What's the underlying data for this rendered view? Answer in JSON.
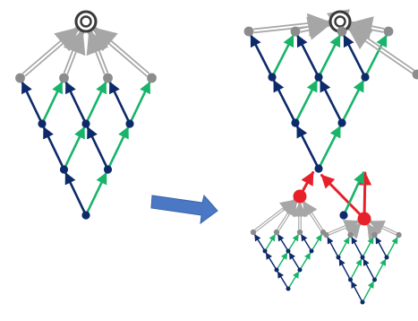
{
  "colors": {
    "background": "#ffffff",
    "navy": "#0d2a6b",
    "green": "#19b46a",
    "gray": "#8c8c8c",
    "gray_arrow": "#a6a6a6",
    "red": "#e8202a",
    "transform_arrow": "#4a78c4",
    "root_ring": "#3a3a3a"
  },
  "icons": {
    "root": "target-ring",
    "transform": "block-arrow-right"
  },
  "diagrams": [
    {
      "name": "original-lattice",
      "levels": 4,
      "red_nodes": []
    },
    {
      "name": "expanded-lattice",
      "levels": 4,
      "red_nodes": [
        "left-branch-root",
        "right-branch-root"
      ]
    }
  ]
}
